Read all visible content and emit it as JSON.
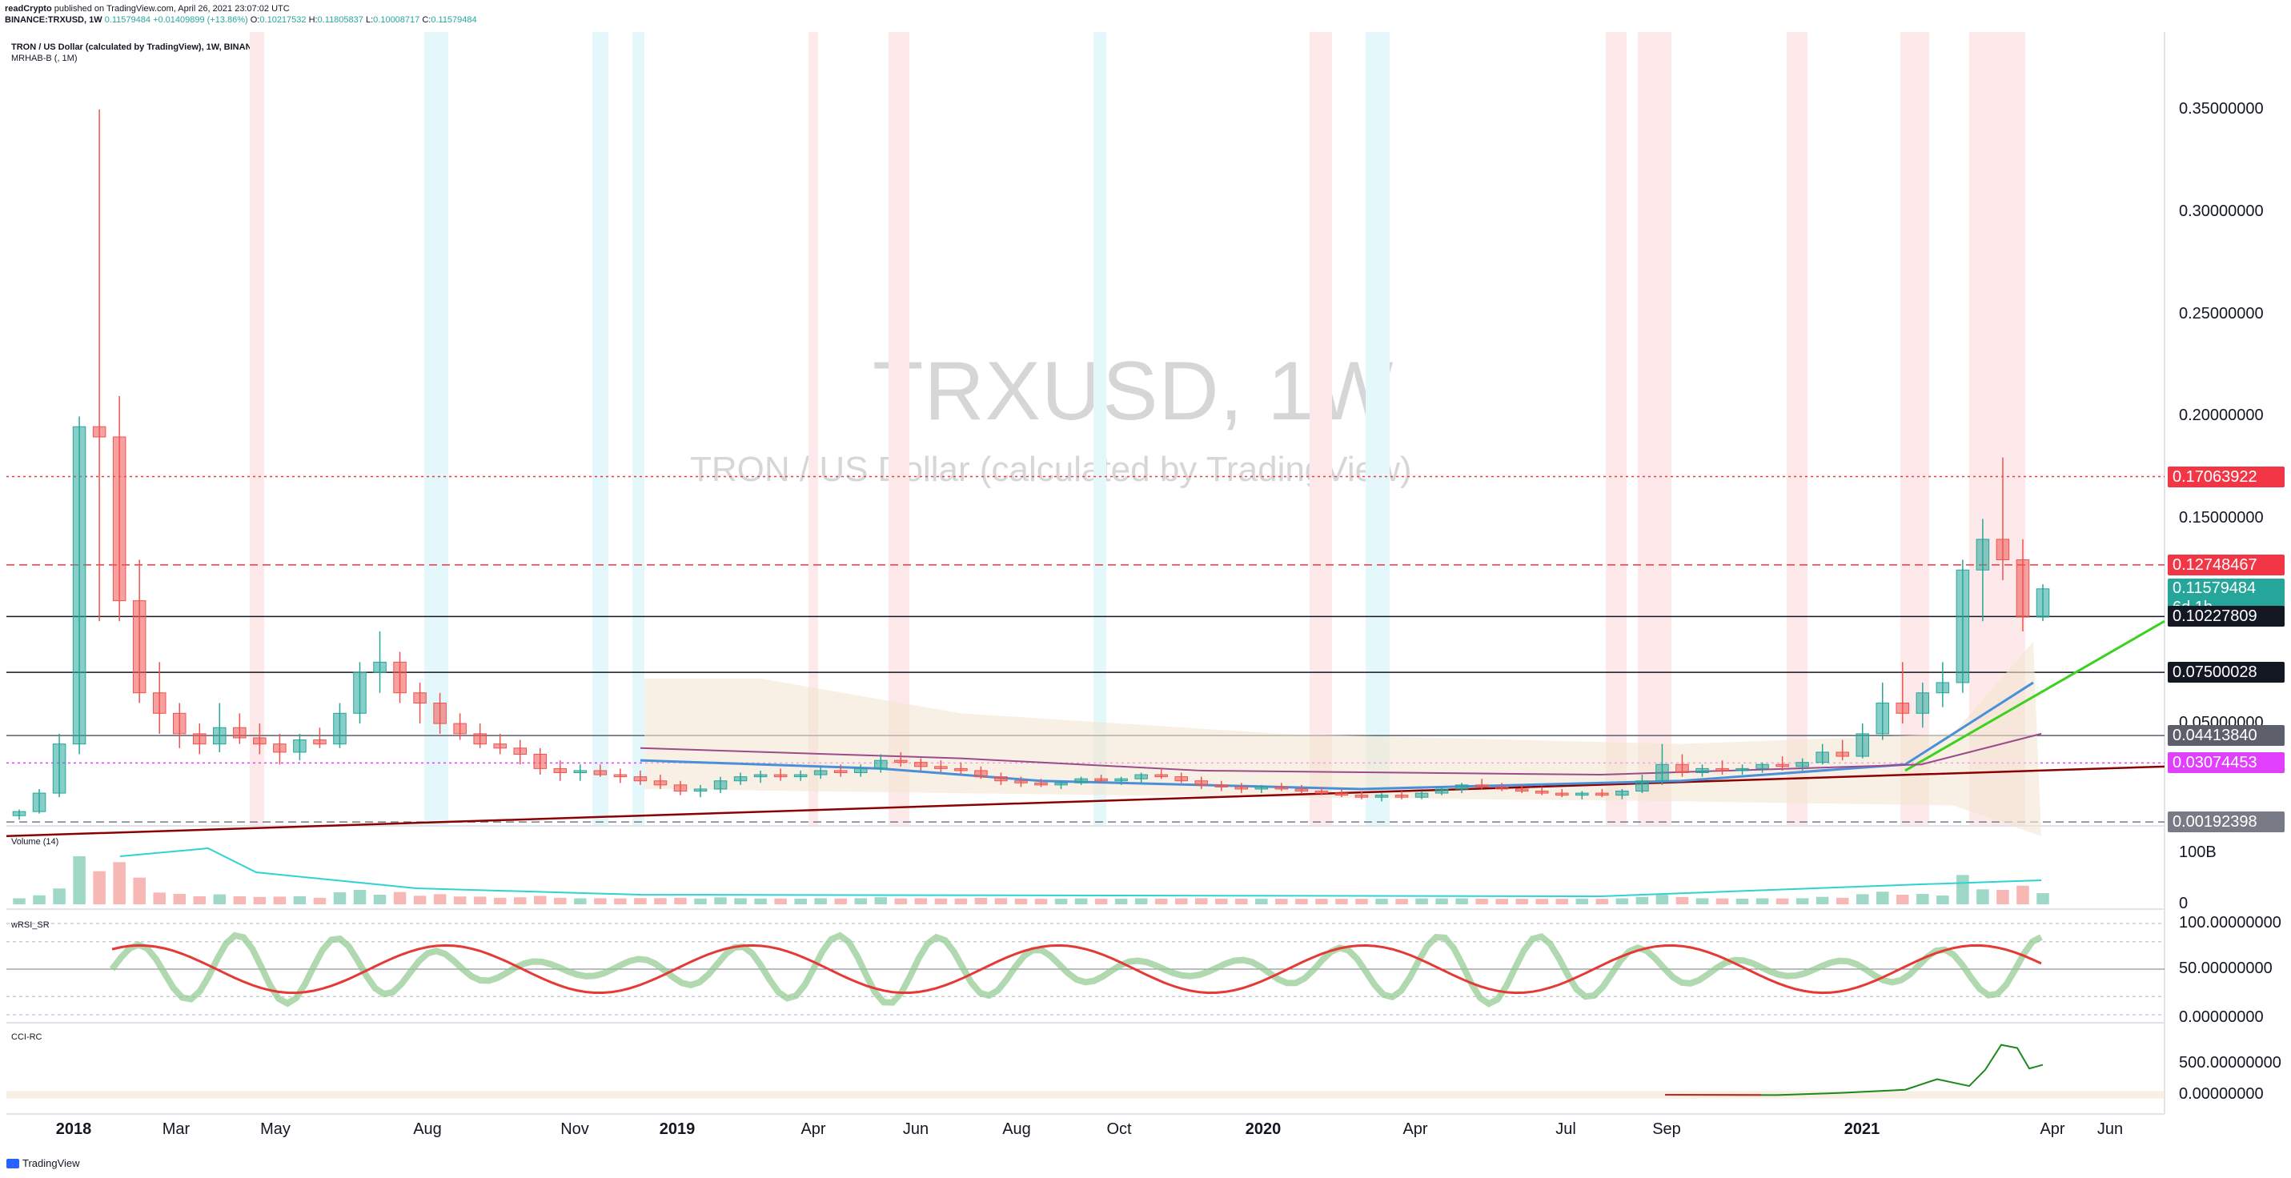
{
  "header": {
    "publisher": "readCrypto",
    "published_text": "published on TradingView.com, April 26, 2021 23:07:02 UTC",
    "symbol": "BINANCE:TRXUSD, 1W",
    "last": "0.11579484",
    "change": "+0.01409899 (+13.86%)",
    "o_label": "O:",
    "o": "0.10217532",
    "h_label": "H:",
    "h": "0.11805837",
    "l_label": "L:",
    "l": "0.10008717",
    "c_label": "C:",
    "c": "0.11579484"
  },
  "legend": {
    "title": "TRON / US Dollar (calculated by TradingView), 1W, BINANCE",
    "indicator": "MRHAB-B (, 1M)"
  },
  "watermark": {
    "symbol": "TRXUSD, 1W",
    "description": "TRON / US Dollar (calculated by TradingView)"
  },
  "panes": {
    "volume": "Volume (14)",
    "wrsi": "wRSI_SR",
    "cci": "CCI-RC"
  },
  "footer": {
    "brand": "TradingView"
  },
  "chart_data": {
    "type": "candlestick",
    "x_labels": [
      "2018",
      "Mar",
      "May",
      "Aug",
      "Nov",
      "2019",
      "Apr",
      "Jun",
      "Aug",
      "Oct",
      "2020",
      "Apr",
      "Jul",
      "Sep",
      "2021",
      "Apr",
      "Jun"
    ],
    "price_axis": {
      "ticks": [
        "0.35000000",
        "0.30000000",
        "0.25000000",
        "0.20000000",
        "0.15000000",
        "0.10000000",
        "0.05000000",
        "0.00000000"
      ],
      "ylim": [
        0.0,
        0.38
      ]
    },
    "price_levels": [
      {
        "label": "0.17063922",
        "value": 0.17063922,
        "color": "#f23645",
        "style": "dotted"
      },
      {
        "label": "0.12748467",
        "value": 0.12748467,
        "color": "#f23645",
        "style": "dashed"
      },
      {
        "label": "0.11579484",
        "value": 0.11579484,
        "color": "#26a69a",
        "style": "none",
        "sub": "6d 1h"
      },
      {
        "label": "0.10227809",
        "value": 0.10227809,
        "color": "#131722",
        "style": "solid"
      },
      {
        "label": "0.07500028",
        "value": 0.07500028,
        "color": "#131722",
        "style": "solid"
      },
      {
        "label": "0.04413840",
        "value": 0.0441384,
        "color": "#5d606b",
        "style": "solid"
      },
      {
        "label": "0.03074453",
        "value": 0.03074453,
        "color": "#e040fb",
        "style": "dotted"
      },
      {
        "label": "0.00192398",
        "value": 0.00192398,
        "color": "#787b86",
        "style": "dashed"
      }
    ],
    "candles": [
      [
        0.005,
        0.008,
        0.003,
        0.007
      ],
      [
        0.007,
        0.018,
        0.006,
        0.016
      ],
      [
        0.016,
        0.045,
        0.014,
        0.04
      ],
      [
        0.04,
        0.2,
        0.035,
        0.195
      ],
      [
        0.195,
        0.35,
        0.1,
        0.19
      ],
      [
        0.19,
        0.21,
        0.1,
        0.11
      ],
      [
        0.11,
        0.13,
        0.06,
        0.065
      ],
      [
        0.065,
        0.08,
        0.045,
        0.055
      ],
      [
        0.055,
        0.06,
        0.038,
        0.045
      ],
      [
        0.045,
        0.05,
        0.035,
        0.04
      ],
      [
        0.04,
        0.06,
        0.036,
        0.048
      ],
      [
        0.048,
        0.055,
        0.04,
        0.043
      ],
      [
        0.043,
        0.05,
        0.035,
        0.04
      ],
      [
        0.04,
        0.045,
        0.03,
        0.036
      ],
      [
        0.036,
        0.045,
        0.032,
        0.042
      ],
      [
        0.042,
        0.048,
        0.038,
        0.04
      ],
      [
        0.04,
        0.06,
        0.038,
        0.055
      ],
      [
        0.055,
        0.08,
        0.05,
        0.075
      ],
      [
        0.075,
        0.095,
        0.065,
        0.08
      ],
      [
        0.08,
        0.085,
        0.06,
        0.065
      ],
      [
        0.065,
        0.07,
        0.05,
        0.06
      ],
      [
        0.06,
        0.065,
        0.045,
        0.05
      ],
      [
        0.05,
        0.055,
        0.042,
        0.045
      ],
      [
        0.045,
        0.05,
        0.038,
        0.04
      ],
      [
        0.04,
        0.045,
        0.035,
        0.038
      ],
      [
        0.038,
        0.042,
        0.03,
        0.035
      ],
      [
        0.035,
        0.038,
        0.025,
        0.028
      ],
      [
        0.028,
        0.032,
        0.022,
        0.026
      ],
      [
        0.026,
        0.03,
        0.022,
        0.027
      ],
      [
        0.027,
        0.03,
        0.024,
        0.025
      ],
      [
        0.025,
        0.028,
        0.021,
        0.024
      ],
      [
        0.024,
        0.027,
        0.02,
        0.022
      ],
      [
        0.022,
        0.025,
        0.018,
        0.02
      ],
      [
        0.02,
        0.022,
        0.015,
        0.017
      ],
      [
        0.017,
        0.02,
        0.014,
        0.018
      ],
      [
        0.018,
        0.024,
        0.016,
        0.022
      ],
      [
        0.022,
        0.026,
        0.02,
        0.024
      ],
      [
        0.024,
        0.027,
        0.021,
        0.025
      ],
      [
        0.025,
        0.028,
        0.022,
        0.024
      ],
      [
        0.024,
        0.027,
        0.022,
        0.025
      ],
      [
        0.025,
        0.029,
        0.023,
        0.027
      ],
      [
        0.027,
        0.03,
        0.024,
        0.026
      ],
      [
        0.026,
        0.03,
        0.024,
        0.028
      ],
      [
        0.028,
        0.035,
        0.026,
        0.032
      ],
      [
        0.032,
        0.036,
        0.029,
        0.031
      ],
      [
        0.031,
        0.033,
        0.027,
        0.029
      ],
      [
        0.029,
        0.032,
        0.026,
        0.028
      ],
      [
        0.028,
        0.031,
        0.025,
        0.027
      ],
      [
        0.027,
        0.029,
        0.023,
        0.024
      ],
      [
        0.024,
        0.026,
        0.02,
        0.022
      ],
      [
        0.022,
        0.024,
        0.019,
        0.021
      ],
      [
        0.021,
        0.023,
        0.019,
        0.02
      ],
      [
        0.02,
        0.022,
        0.018,
        0.021
      ],
      [
        0.021,
        0.024,
        0.02,
        0.023
      ],
      [
        0.023,
        0.025,
        0.021,
        0.022
      ],
      [
        0.022,
        0.024,
        0.02,
        0.023
      ],
      [
        0.023,
        0.026,
        0.021,
        0.025
      ],
      [
        0.025,
        0.028,
        0.023,
        0.024
      ],
      [
        0.024,
        0.026,
        0.021,
        0.022
      ],
      [
        0.022,
        0.024,
        0.018,
        0.02
      ],
      [
        0.02,
        0.022,
        0.017,
        0.019
      ],
      [
        0.019,
        0.021,
        0.016,
        0.018
      ],
      [
        0.018,
        0.02,
        0.016,
        0.019
      ],
      [
        0.019,
        0.021,
        0.017,
        0.018
      ],
      [
        0.018,
        0.02,
        0.016,
        0.017
      ],
      [
        0.017,
        0.019,
        0.015,
        0.016
      ],
      [
        0.016,
        0.018,
        0.014,
        0.015
      ],
      [
        0.015,
        0.017,
        0.013,
        0.014
      ],
      [
        0.014,
        0.016,
        0.012,
        0.015
      ],
      [
        0.015,
        0.017,
        0.013,
        0.014
      ],
      [
        0.014,
        0.017,
        0.013,
        0.016
      ],
      [
        0.016,
        0.019,
        0.015,
        0.018
      ],
      [
        0.018,
        0.021,
        0.016,
        0.02
      ],
      [
        0.02,
        0.023,
        0.018,
        0.019
      ],
      [
        0.019,
        0.021,
        0.017,
        0.018
      ],
      [
        0.018,
        0.02,
        0.016,
        0.017
      ],
      [
        0.017,
        0.019,
        0.015,
        0.016
      ],
      [
        0.016,
        0.018,
        0.014,
        0.015
      ],
      [
        0.015,
        0.017,
        0.013,
        0.016
      ],
      [
        0.016,
        0.018,
        0.014,
        0.015
      ],
      [
        0.015,
        0.018,
        0.013,
        0.017
      ],
      [
        0.017,
        0.025,
        0.016,
        0.022
      ],
      [
        0.022,
        0.04,
        0.02,
        0.03
      ],
      [
        0.03,
        0.035,
        0.024,
        0.026
      ],
      [
        0.026,
        0.03,
        0.024,
        0.028
      ],
      [
        0.028,
        0.032,
        0.025,
        0.027
      ],
      [
        0.027,
        0.03,
        0.025,
        0.028
      ],
      [
        0.028,
        0.031,
        0.026,
        0.03
      ],
      [
        0.03,
        0.034,
        0.027,
        0.029
      ],
      [
        0.029,
        0.033,
        0.027,
        0.031
      ],
      [
        0.031,
        0.04,
        0.03,
        0.036
      ],
      [
        0.036,
        0.042,
        0.032,
        0.034
      ],
      [
        0.034,
        0.05,
        0.033,
        0.045
      ],
      [
        0.045,
        0.07,
        0.042,
        0.06
      ],
      [
        0.06,
        0.08,
        0.05,
        0.055
      ],
      [
        0.055,
        0.07,
        0.048,
        0.065
      ],
      [
        0.065,
        0.08,
        0.058,
        0.07
      ],
      [
        0.07,
        0.13,
        0.065,
        0.125
      ],
      [
        0.125,
        0.15,
        0.1,
        0.14
      ],
      [
        0.14,
        0.18,
        0.12,
        0.13
      ],
      [
        0.13,
        0.14,
        0.095,
        0.102
      ],
      [
        0.102,
        0.118,
        0.1,
        0.1158
      ]
    ],
    "volume_axis": {
      "ticks": [
        "100B",
        "0"
      ]
    },
    "wrsi_axis": {
      "ticks": [
        "100.00000000",
        "50.00000000",
        "0.00000000"
      ]
    },
    "cci_axis": {
      "ticks": [
        "500.00000000",
        "0.00000000"
      ]
    },
    "colors": {
      "up": "#26a69a",
      "down": "#ef5350",
      "trend_red": "#8b0000",
      "trend_green": "#3cd11f",
      "ma_blue": "#4a90d9"
    }
  }
}
